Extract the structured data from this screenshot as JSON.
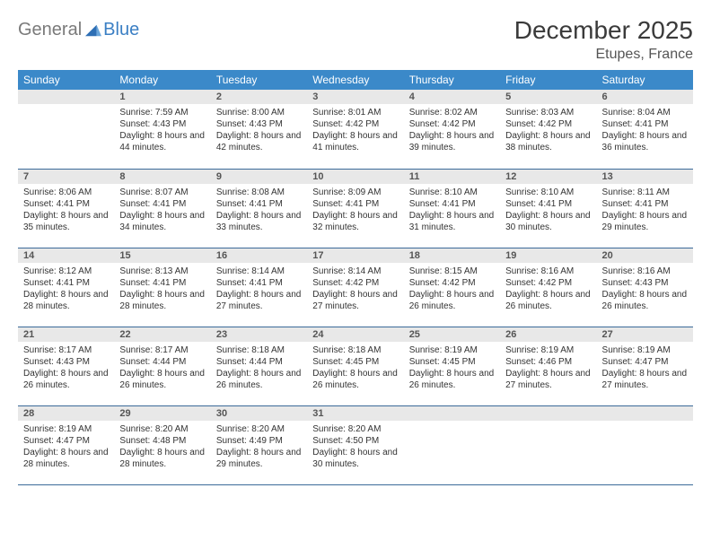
{
  "logo": {
    "text_gray": "General",
    "text_blue": "Blue"
  },
  "header": {
    "title": "December 2025",
    "location": "Etupes, France"
  },
  "colors": {
    "header_bg": "#3b89c9",
    "header_text": "#ffffff",
    "daynum_bg": "#e8e8e8",
    "row_border": "#3b6a99",
    "logo_gray": "#7a7a7a",
    "logo_blue": "#3b7fc4"
  },
  "day_headers": [
    "Sunday",
    "Monday",
    "Tuesday",
    "Wednesday",
    "Thursday",
    "Friday",
    "Saturday"
  ],
  "weeks": [
    [
      null,
      {
        "n": "1",
        "sunrise": "Sunrise: 7:59 AM",
        "sunset": "Sunset: 4:43 PM",
        "daylight": "Daylight: 8 hours and 44 minutes."
      },
      {
        "n": "2",
        "sunrise": "Sunrise: 8:00 AM",
        "sunset": "Sunset: 4:43 PM",
        "daylight": "Daylight: 8 hours and 42 minutes."
      },
      {
        "n": "3",
        "sunrise": "Sunrise: 8:01 AM",
        "sunset": "Sunset: 4:42 PM",
        "daylight": "Daylight: 8 hours and 41 minutes."
      },
      {
        "n": "4",
        "sunrise": "Sunrise: 8:02 AM",
        "sunset": "Sunset: 4:42 PM",
        "daylight": "Daylight: 8 hours and 39 minutes."
      },
      {
        "n": "5",
        "sunrise": "Sunrise: 8:03 AM",
        "sunset": "Sunset: 4:42 PM",
        "daylight": "Daylight: 8 hours and 38 minutes."
      },
      {
        "n": "6",
        "sunrise": "Sunrise: 8:04 AM",
        "sunset": "Sunset: 4:41 PM",
        "daylight": "Daylight: 8 hours and 36 minutes."
      }
    ],
    [
      {
        "n": "7",
        "sunrise": "Sunrise: 8:06 AM",
        "sunset": "Sunset: 4:41 PM",
        "daylight": "Daylight: 8 hours and 35 minutes."
      },
      {
        "n": "8",
        "sunrise": "Sunrise: 8:07 AM",
        "sunset": "Sunset: 4:41 PM",
        "daylight": "Daylight: 8 hours and 34 minutes."
      },
      {
        "n": "9",
        "sunrise": "Sunrise: 8:08 AM",
        "sunset": "Sunset: 4:41 PM",
        "daylight": "Daylight: 8 hours and 33 minutes."
      },
      {
        "n": "10",
        "sunrise": "Sunrise: 8:09 AM",
        "sunset": "Sunset: 4:41 PM",
        "daylight": "Daylight: 8 hours and 32 minutes."
      },
      {
        "n": "11",
        "sunrise": "Sunrise: 8:10 AM",
        "sunset": "Sunset: 4:41 PM",
        "daylight": "Daylight: 8 hours and 31 minutes."
      },
      {
        "n": "12",
        "sunrise": "Sunrise: 8:10 AM",
        "sunset": "Sunset: 4:41 PM",
        "daylight": "Daylight: 8 hours and 30 minutes."
      },
      {
        "n": "13",
        "sunrise": "Sunrise: 8:11 AM",
        "sunset": "Sunset: 4:41 PM",
        "daylight": "Daylight: 8 hours and 29 minutes."
      }
    ],
    [
      {
        "n": "14",
        "sunrise": "Sunrise: 8:12 AM",
        "sunset": "Sunset: 4:41 PM",
        "daylight": "Daylight: 8 hours and 28 minutes."
      },
      {
        "n": "15",
        "sunrise": "Sunrise: 8:13 AM",
        "sunset": "Sunset: 4:41 PM",
        "daylight": "Daylight: 8 hours and 28 minutes."
      },
      {
        "n": "16",
        "sunrise": "Sunrise: 8:14 AM",
        "sunset": "Sunset: 4:41 PM",
        "daylight": "Daylight: 8 hours and 27 minutes."
      },
      {
        "n": "17",
        "sunrise": "Sunrise: 8:14 AM",
        "sunset": "Sunset: 4:42 PM",
        "daylight": "Daylight: 8 hours and 27 minutes."
      },
      {
        "n": "18",
        "sunrise": "Sunrise: 8:15 AM",
        "sunset": "Sunset: 4:42 PM",
        "daylight": "Daylight: 8 hours and 26 minutes."
      },
      {
        "n": "19",
        "sunrise": "Sunrise: 8:16 AM",
        "sunset": "Sunset: 4:42 PM",
        "daylight": "Daylight: 8 hours and 26 minutes."
      },
      {
        "n": "20",
        "sunrise": "Sunrise: 8:16 AM",
        "sunset": "Sunset: 4:43 PM",
        "daylight": "Daylight: 8 hours and 26 minutes."
      }
    ],
    [
      {
        "n": "21",
        "sunrise": "Sunrise: 8:17 AM",
        "sunset": "Sunset: 4:43 PM",
        "daylight": "Daylight: 8 hours and 26 minutes."
      },
      {
        "n": "22",
        "sunrise": "Sunrise: 8:17 AM",
        "sunset": "Sunset: 4:44 PM",
        "daylight": "Daylight: 8 hours and 26 minutes."
      },
      {
        "n": "23",
        "sunrise": "Sunrise: 8:18 AM",
        "sunset": "Sunset: 4:44 PM",
        "daylight": "Daylight: 8 hours and 26 minutes."
      },
      {
        "n": "24",
        "sunrise": "Sunrise: 8:18 AM",
        "sunset": "Sunset: 4:45 PM",
        "daylight": "Daylight: 8 hours and 26 minutes."
      },
      {
        "n": "25",
        "sunrise": "Sunrise: 8:19 AM",
        "sunset": "Sunset: 4:45 PM",
        "daylight": "Daylight: 8 hours and 26 minutes."
      },
      {
        "n": "26",
        "sunrise": "Sunrise: 8:19 AM",
        "sunset": "Sunset: 4:46 PM",
        "daylight": "Daylight: 8 hours and 27 minutes."
      },
      {
        "n": "27",
        "sunrise": "Sunrise: 8:19 AM",
        "sunset": "Sunset: 4:47 PM",
        "daylight": "Daylight: 8 hours and 27 minutes."
      }
    ],
    [
      {
        "n": "28",
        "sunrise": "Sunrise: 8:19 AM",
        "sunset": "Sunset: 4:47 PM",
        "daylight": "Daylight: 8 hours and 28 minutes."
      },
      {
        "n": "29",
        "sunrise": "Sunrise: 8:20 AM",
        "sunset": "Sunset: 4:48 PM",
        "daylight": "Daylight: 8 hours and 28 minutes."
      },
      {
        "n": "30",
        "sunrise": "Sunrise: 8:20 AM",
        "sunset": "Sunset: 4:49 PM",
        "daylight": "Daylight: 8 hours and 29 minutes."
      },
      {
        "n": "31",
        "sunrise": "Sunrise: 8:20 AM",
        "sunset": "Sunset: 4:50 PM",
        "daylight": "Daylight: 8 hours and 30 minutes."
      },
      null,
      null,
      null
    ]
  ]
}
